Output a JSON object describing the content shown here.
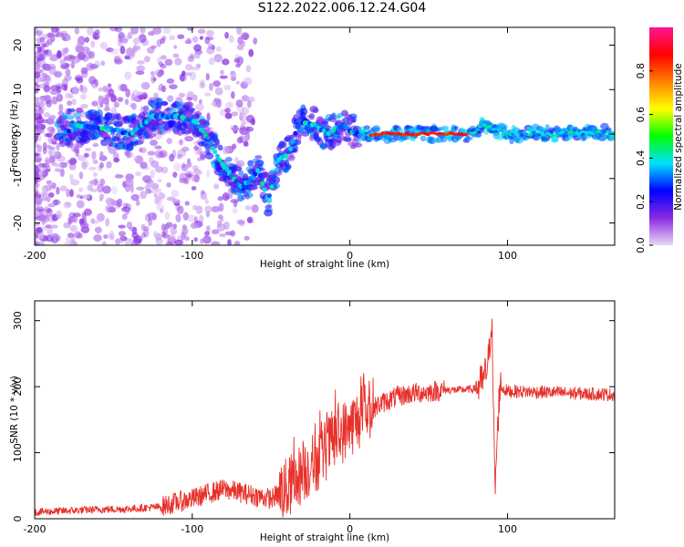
{
  "title": "S122.2022.006.12.24.G04",
  "chart_data": [
    {
      "type": "heatmap",
      "xlabel": "Height of straight line (km)",
      "ylabel": "Frequency (Hz)",
      "xlim": [
        -200,
        168
      ],
      "ylim": [
        -25,
        24
      ],
      "xticks": [
        -200,
        -100,
        0,
        100
      ],
      "xtick_labels": [
        "-200",
        "-100",
        "0",
        "100"
      ],
      "yticks": [
        -20,
        -10,
        0,
        10,
        20
      ],
      "ytick_labels": [
        "-20",
        "-10",
        "0",
        "10",
        "20"
      ],
      "colorbar": {
        "label": "Normalized spectral amplitude",
        "range": [
          0,
          1
        ],
        "ticks": [
          0.0,
          0.2,
          0.4,
          0.6,
          0.8
        ],
        "tick_labels": [
          "0.0",
          "0.2",
          "0.4",
          "0.6",
          "0.8"
        ],
        "colormap": [
          "#e8d8f8",
          "#8a2be2",
          "#0000ff",
          "#00e0ff",
          "#00ff00",
          "#ffff00",
          "#ff8000",
          "#ff0000",
          "#ff1493"
        ]
      },
      "ridge": [
        {
          "x": -178,
          "y": 2
        },
        {
          "x": -160,
          "y": 1.5
        },
        {
          "x": -150,
          "y": 1
        },
        {
          "x": -140,
          "y": 0
        },
        {
          "x": -125,
          "y": 4
        },
        {
          "x": -110,
          "y": 4
        },
        {
          "x": -98,
          "y": 3
        },
        {
          "x": -90,
          "y": -1
        },
        {
          "x": -82,
          "y": -6
        },
        {
          "x": -76,
          "y": -9
        },
        {
          "x": -68,
          "y": -12
        },
        {
          "x": -58,
          "y": -8
        },
        {
          "x": -52,
          "y": -15
        },
        {
          "x": -45,
          "y": -6
        },
        {
          "x": -38,
          "y": -4
        },
        {
          "x": -32,
          "y": 3
        },
        {
          "x": -22,
          "y": 2
        },
        {
          "x": -15,
          "y": 0
        },
        {
          "x": -5,
          "y": 2
        },
        {
          "x": 5,
          "y": 0
        },
        {
          "x": 20,
          "y": 0
        },
        {
          "x": 50,
          "y": 0
        },
        {
          "x": 78,
          "y": 0
        },
        {
          "x": 84,
          "y": 2
        },
        {
          "x": 100,
          "y": 0
        },
        {
          "x": 130,
          "y": 0
        },
        {
          "x": 168,
          "y": 0.5
        }
      ]
    },
    {
      "type": "line",
      "xlabel": "Height of straight line (km)",
      "ylabel": "SNR (10 * v/v)",
      "xlim": [
        -200,
        168
      ],
      "ylim": [
        0,
        330
      ],
      "xticks": [
        -200,
        -100,
        0,
        100
      ],
      "xtick_labels": [
        "-200",
        "-100",
        "0",
        "100"
      ],
      "yticks": [
        0,
        100,
        200,
        300
      ],
      "ytick_labels": [
        "0",
        "100",
        "200",
        "300"
      ],
      "color": "#e8302a",
      "series": [
        {
          "x": [
            -200,
            -180,
            -160,
            -140,
            -120,
            -110,
            -100,
            -90,
            -80,
            -70,
            -60,
            -50,
            -40,
            -30,
            -20,
            -10,
            0,
            10,
            20,
            30,
            40,
            50,
            60,
            70,
            80,
            85,
            88,
            90,
            92,
            95,
            100,
            120,
            140,
            168
          ],
          "values": [
            10,
            12,
            14,
            15,
            18,
            25,
            30,
            38,
            45,
            40,
            35,
            30,
            45,
            70,
            90,
            120,
            140,
            160,
            175,
            185,
            190,
            192,
            195,
            195,
            197,
            210,
            240,
            310,
            40,
            200,
            193,
            192,
            190,
            188
          ]
        }
      ]
    }
  ]
}
